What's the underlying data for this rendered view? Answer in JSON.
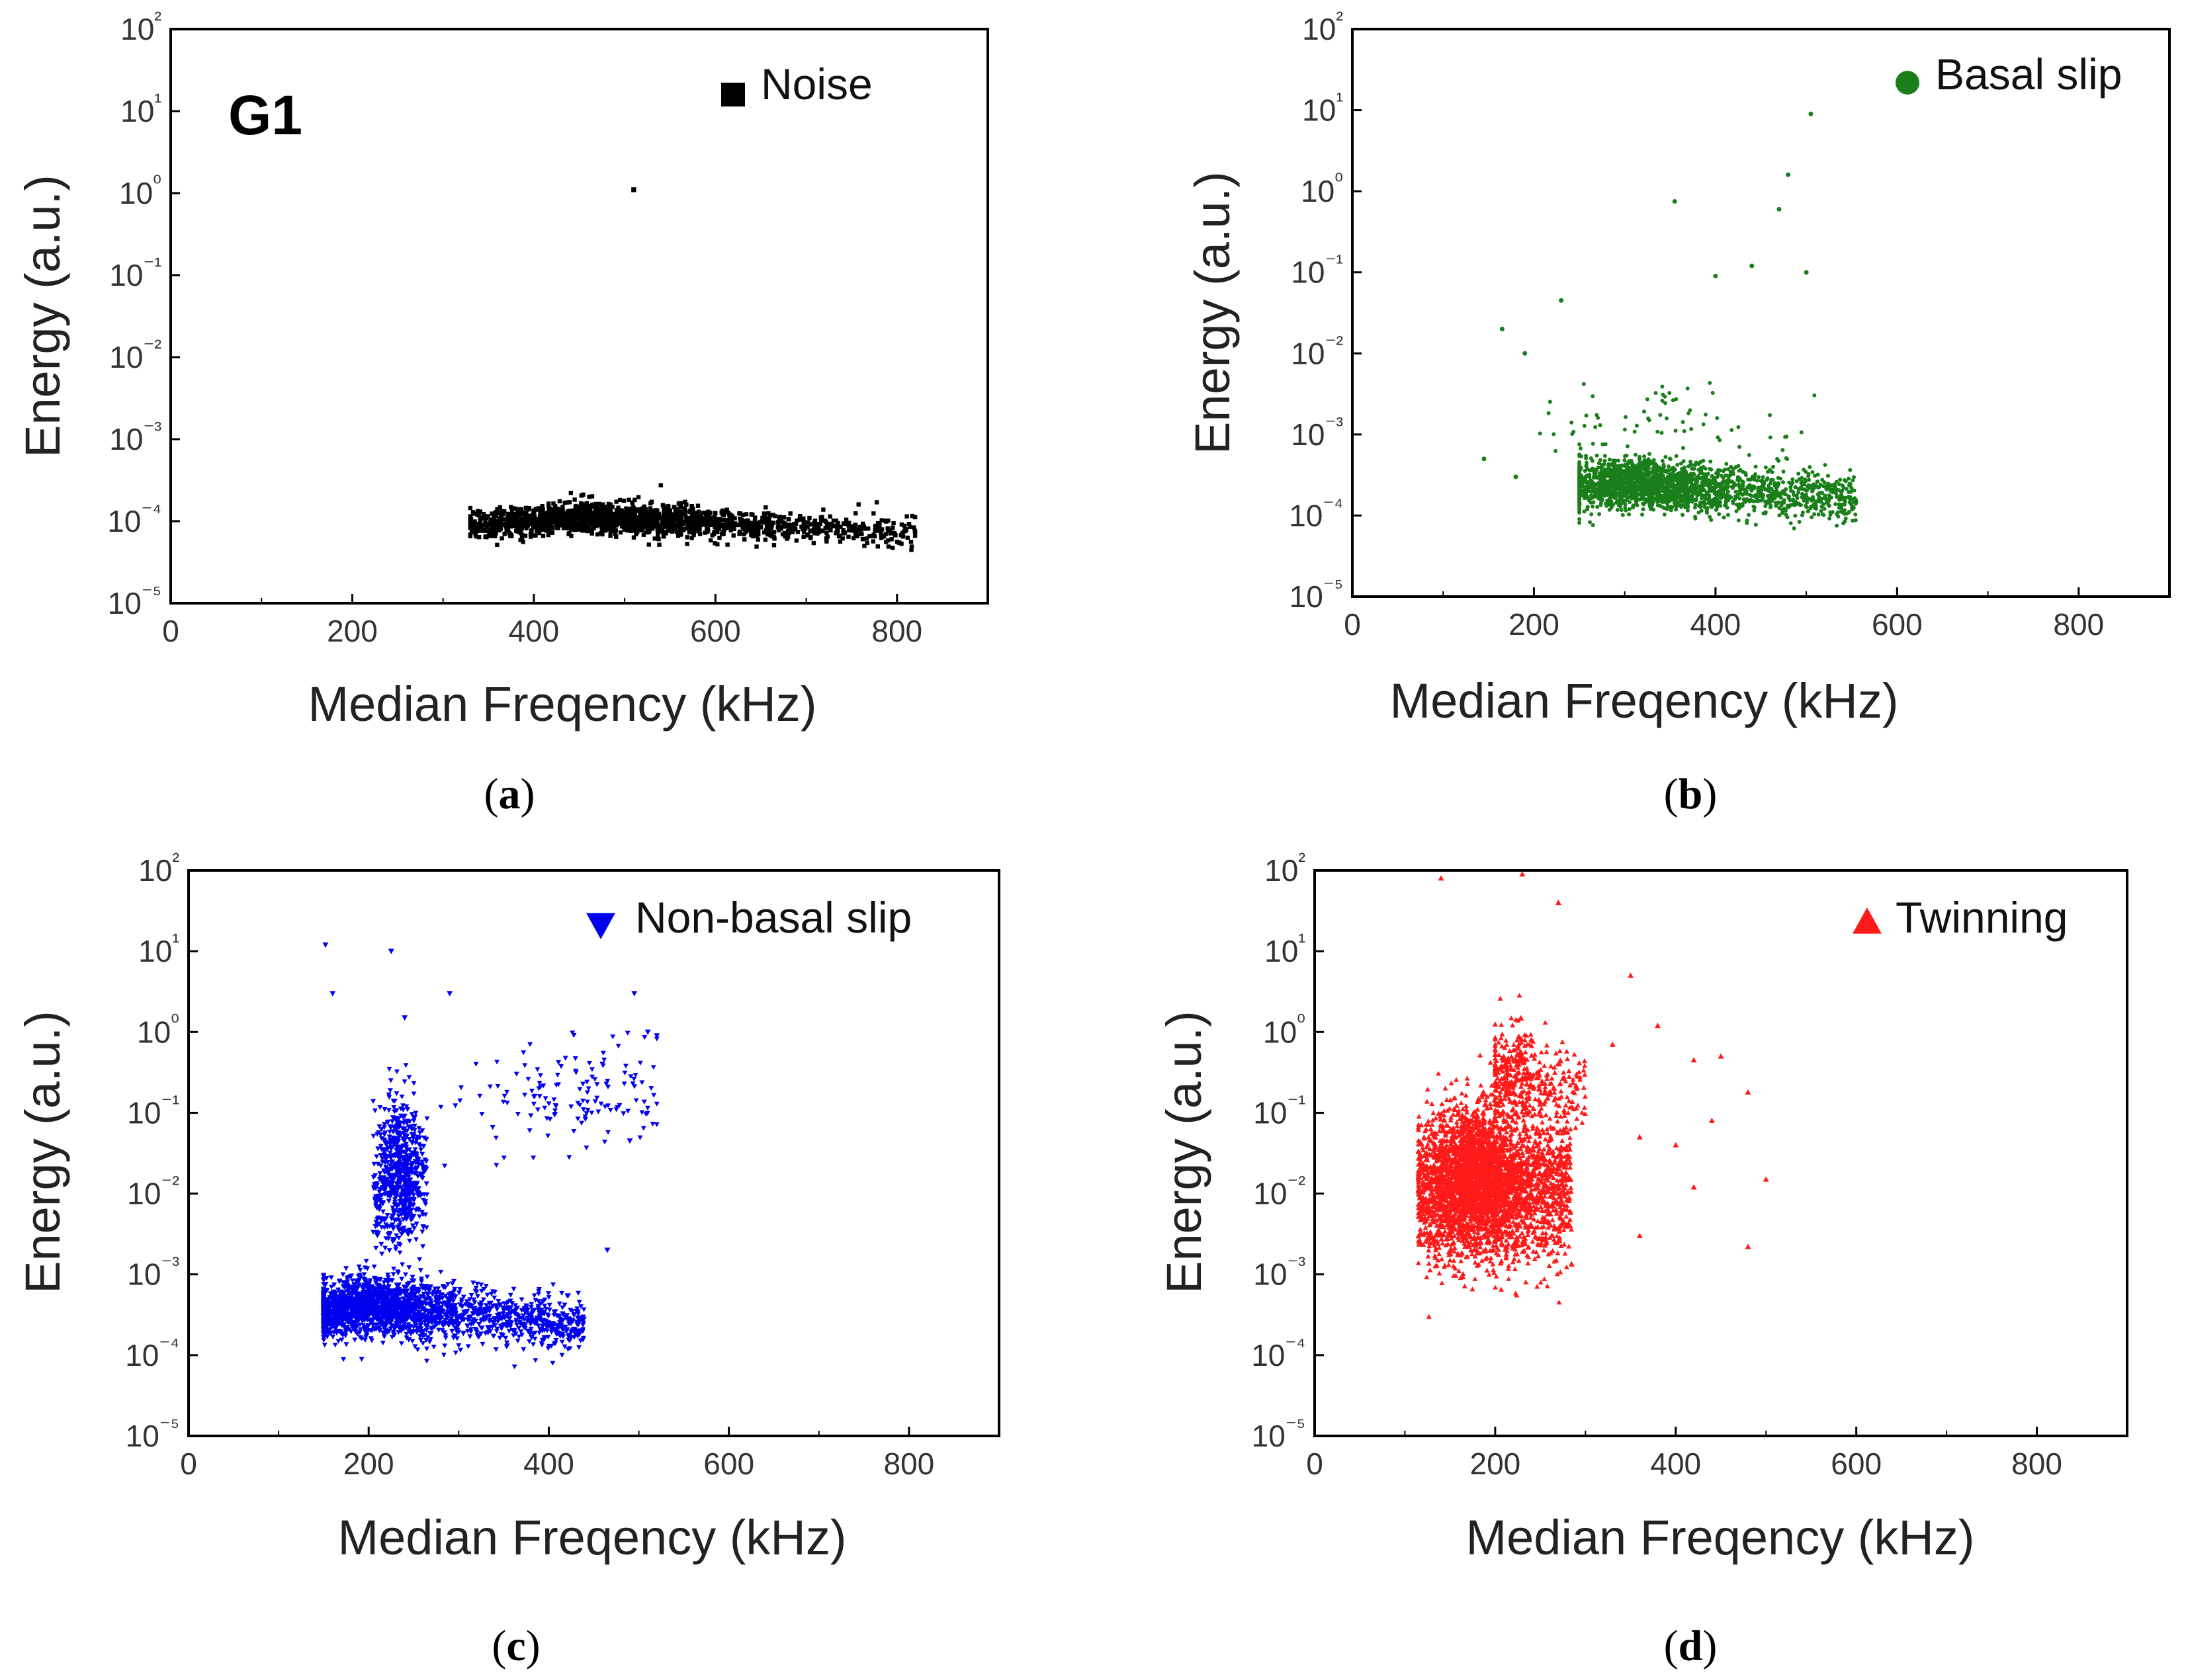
{
  "chart_data": [
    {
      "id": "a",
      "type": "scatter",
      "panel_label": "G1",
      "caption_letter": "a",
      "xlabel": "Median Freqency (kHz)",
      "ylabel": "Energy (a.u.)",
      "xlim": [
        0,
        900
      ],
      "ylim": [
        1e-05,
        100
      ],
      "y_scale": "log",
      "x_ticks": [
        0,
        200,
        400,
        600,
        800
      ],
      "y_tick_exponents": [
        -5,
        -4,
        -3,
        -2,
        -1,
        0,
        1,
        2
      ],
      "legend": {
        "label": "Noise",
        "marker": "square",
        "position": "top-right"
      },
      "color": "#000000",
      "marker": "square",
      "outliers": [
        [
          510,
          1.1
        ]
      ],
      "clusters": [
        {
          "x_range": [
            330,
            820
          ],
          "y_center": 0.00011,
          "y_spread_decades": 0.18,
          "n": 1800,
          "peak_x": 480
        }
      ]
    },
    {
      "id": "b",
      "type": "scatter",
      "caption_letter": "b",
      "xlabel": "Median Freqency (kHz)",
      "ylabel": "Energy (a.u.)",
      "xlim": [
        0,
        900
      ],
      "ylim": [
        1e-05,
        100
      ],
      "y_scale": "log",
      "x_ticks": [
        0,
        200,
        400,
        600,
        800
      ],
      "y_tick_exponents": [
        -5,
        -4,
        -3,
        -2,
        -1,
        0,
        1,
        2
      ],
      "legend": {
        "label": "Basal slip",
        "marker": "circle",
        "position": "top-right"
      },
      "color": "#1a7f1a",
      "marker": "circle",
      "outliers": [
        [
          505,
          9
        ],
        [
          480,
          1.6
        ],
        [
          355,
          0.75
        ],
        [
          470,
          0.6
        ],
        [
          230,
          0.045
        ],
        [
          400,
          0.09
        ],
        [
          440,
          0.12
        ],
        [
          500,
          0.1
        ],
        [
          165,
          0.02
        ],
        [
          190,
          0.01
        ],
        [
          145,
          0.0005
        ],
        [
          180,
          0.0003
        ]
      ],
      "clusters": [
        {
          "x_range": [
            250,
            555
          ],
          "y_center": 0.00025,
          "y_spread_decades": 0.3,
          "n": 2200,
          "peak_x": 310
        },
        {
          "x_range": [
            200,
            520
          ],
          "y_center": 0.0015,
          "y_spread_decades": 0.6,
          "n": 80,
          "peak_x": 330
        }
      ]
    },
    {
      "id": "c",
      "type": "scatter",
      "caption_letter": "c",
      "xlabel": "Median Freqency (kHz)",
      "ylabel": "Energy (a.u.)",
      "xlim": [
        0,
        900
      ],
      "ylim": [
        1e-05,
        100
      ],
      "y_scale": "log",
      "x_ticks": [
        0,
        200,
        400,
        600,
        800
      ],
      "y_tick_exponents": [
        -5,
        -4,
        -3,
        -2,
        -1,
        0,
        1,
        2
      ],
      "legend": {
        "label": "Non-basal slip",
        "marker": "triangle-down",
        "position": "top-right"
      },
      "color": "#0000ee",
      "marker": "triangle-down",
      "outliers": [
        [
          152,
          12
        ],
        [
          225,
          10
        ],
        [
          160,
          3
        ],
        [
          290,
          3
        ],
        [
          240,
          1.5
        ],
        [
          495,
          3
        ],
        [
          520,
          0.9
        ],
        [
          510,
          1
        ],
        [
          490,
          0.045
        ],
        [
          465,
          0.002
        ],
        [
          150,
          0.0003
        ]
      ],
      "clusters": [
        {
          "x_range": [
            150,
            440
          ],
          "y_center": 0.0004,
          "y_spread_decades": 0.35,
          "n": 2200,
          "peak_x": 200
        },
        {
          "x_range": [
            205,
            265
          ],
          "y_center": 0.02,
          "y_spread_decades": 0.9,
          "n": 700,
          "peak_x": 235
        },
        {
          "x_range": [
            280,
            520
          ],
          "y_center": 0.2,
          "y_spread_decades": 0.7,
          "n": 140,
          "peak_x": 450
        }
      ]
    },
    {
      "id": "d",
      "type": "scatter",
      "caption_letter": "d",
      "xlabel": "Median Freqency (kHz)",
      "ylabel": "Energy (a.u.)",
      "xlim": [
        0,
        900
      ],
      "ylim": [
        1e-05,
        100
      ],
      "y_scale": "log",
      "x_ticks": [
        0,
        200,
        400,
        600,
        800
      ],
      "y_tick_exponents": [
        -5,
        -4,
        -3,
        -2,
        -1,
        0,
        1,
        2
      ],
      "legend": {
        "label": "Twinning",
        "marker": "triangle-up",
        "position": "top-right"
      },
      "color": "#ff1a1a",
      "marker": "triangle-up",
      "outliers": [
        [
          140,
          80
        ],
        [
          230,
          90
        ],
        [
          270,
          40
        ],
        [
          350,
          5
        ],
        [
          380,
          1.2
        ],
        [
          420,
          0.45
        ],
        [
          450,
          0.5
        ],
        [
          480,
          0.18
        ],
        [
          440,
          0.08
        ],
        [
          360,
          0.05
        ],
        [
          400,
          0.04
        ],
        [
          500,
          0.015
        ],
        [
          420,
          0.012
        ],
        [
          360,
          0.003
        ],
        [
          480,
          0.0022
        ],
        [
          330,
          0.7
        ]
      ],
      "clusters": [
        {
          "x_range": [
            115,
            285
          ],
          "y_center": 0.015,
          "y_spread_decades": 0.9,
          "n": 3600,
          "peak_x": 180
        },
        {
          "x_range": [
            200,
            300
          ],
          "y_center": 0.3,
          "y_spread_decades": 0.6,
          "n": 400,
          "peak_x": 220
        }
      ]
    }
  ]
}
